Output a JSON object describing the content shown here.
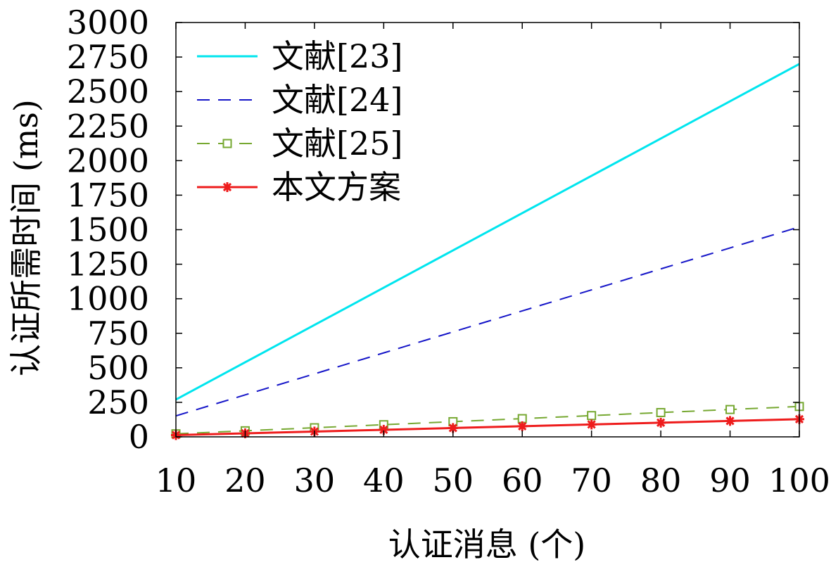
{
  "chart_data": {
    "type": "line",
    "title": "",
    "xlabel": "认证消息 (个)",
    "ylabel": "认证所需时间 (ms)",
    "x": [
      10,
      20,
      30,
      40,
      50,
      60,
      70,
      80,
      90,
      100
    ],
    "xlim": [
      10,
      100
    ],
    "ylim": [
      0,
      3000
    ],
    "x_ticks": [
      "10",
      "20",
      "30",
      "40",
      "50",
      "60",
      "70",
      "80",
      "90",
      "100"
    ],
    "y_ticks": [
      "0",
      "250",
      "500",
      "750",
      "1000",
      "1250",
      "1500",
      "1750",
      "2000",
      "2250",
      "2500",
      "2750",
      "3000"
    ],
    "grid": false,
    "legend_position": "top-left",
    "series": [
      {
        "name": "文献[23]",
        "color": "#00e5ee",
        "style": "solid",
        "marker": "none",
        "values": [
          270,
          540,
          810,
          1080,
          1350,
          1620,
          1890,
          2160,
          2430,
          2700
        ]
      },
      {
        "name": "文献[24]",
        "color": "#1515c8",
        "style": "dashed",
        "marker": "none",
        "values": [
          152,
          304,
          456,
          608,
          760,
          912,
          1064,
          1216,
          1368,
          1520
        ]
      },
      {
        "name": "文献[25]",
        "color": "#76a831",
        "style": "dashed",
        "marker": "square",
        "values": [
          22,
          44,
          66,
          88,
          110,
          132,
          154,
          176,
          198,
          220
        ]
      },
      {
        "name": "本文方案",
        "color": "#ee1c1c",
        "style": "solid",
        "marker": "star",
        "values": [
          12.8,
          25.6,
          38.4,
          51.2,
          64,
          76.8,
          89.6,
          102.4,
          115.2,
          128
        ]
      }
    ]
  }
}
